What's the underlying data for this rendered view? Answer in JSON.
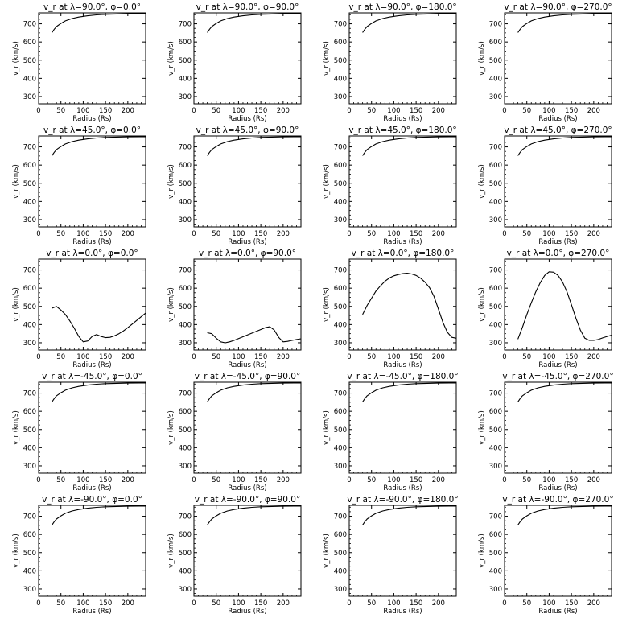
{
  "figure": {
    "xlabel": "Radius (Rs)",
    "ylabel": "v_r (km/s)",
    "xticks": [
      "0",
      "50",
      "100",
      "150",
      "200"
    ],
    "yticks": [
      "300",
      "400",
      "500",
      "600",
      "700"
    ]
  },
  "chart_data": [
    {
      "type": "line",
      "title": "v_r at λ=90.0°, φ=0.0°",
      "xlabel": "Radius (Rs)",
      "ylabel": "v_r (km/s)",
      "xlim": [
        0,
        240
      ],
      "ylim": [
        260,
        760
      ],
      "x": [
        30,
        35,
        40,
        50,
        60,
        75,
        90,
        110,
        130,
        150,
        175,
        200,
        225,
        240
      ],
      "y": [
        652,
        670,
        685,
        702,
        716,
        729,
        737,
        744,
        749,
        752,
        754,
        755,
        756,
        756
      ]
    },
    {
      "type": "line",
      "title": "v_r at λ=90.0°, φ=90.0°",
      "xlabel": "Radius (Rs)",
      "ylabel": "v_r (km/s)",
      "xlim": [
        0,
        240
      ],
      "ylim": [
        260,
        760
      ],
      "x": [
        30,
        35,
        40,
        50,
        60,
        75,
        90,
        110,
        130,
        150,
        175,
        200,
        225,
        240
      ],
      "y": [
        652,
        670,
        685,
        702,
        716,
        729,
        737,
        744,
        749,
        752,
        754,
        755,
        756,
        756
      ]
    },
    {
      "type": "line",
      "title": "v_r at λ=90.0°, φ=180.0°",
      "xlabel": "Radius (Rs)",
      "ylabel": "v_r (km/s)",
      "xlim": [
        0,
        240
      ],
      "ylim": [
        260,
        760
      ],
      "x": [
        30,
        35,
        40,
        50,
        60,
        75,
        90,
        110,
        130,
        150,
        175,
        200,
        225,
        240
      ],
      "y": [
        652,
        670,
        685,
        702,
        716,
        729,
        737,
        744,
        749,
        752,
        754,
        755,
        756,
        756
      ]
    },
    {
      "type": "line",
      "title": "v_r at λ=90.0°, φ=270.0°",
      "xlabel": "Radius (Rs)",
      "ylabel": "v_r (km/s)",
      "xlim": [
        0,
        240
      ],
      "ylim": [
        260,
        760
      ],
      "x": [
        30,
        35,
        40,
        50,
        60,
        75,
        90,
        110,
        130,
        150,
        175,
        200,
        225,
        240
      ],
      "y": [
        652,
        670,
        685,
        702,
        716,
        729,
        737,
        744,
        749,
        752,
        754,
        755,
        756,
        756
      ]
    },
    {
      "type": "line",
      "title": "v_r at λ=45.0°, φ=0.0°",
      "xlabel": "Radius (Rs)",
      "ylabel": "v_r (km/s)",
      "xlim": [
        0,
        240
      ],
      "ylim": [
        260,
        760
      ],
      "x": [
        30,
        35,
        40,
        50,
        60,
        75,
        90,
        110,
        130,
        150,
        175,
        200,
        225,
        240
      ],
      "y": [
        652,
        670,
        685,
        702,
        716,
        729,
        737,
        744,
        749,
        752,
        754,
        755,
        756,
        756
      ]
    },
    {
      "type": "line",
      "title": "v_r at λ=45.0°, φ=90.0°",
      "xlabel": "Radius (Rs)",
      "ylabel": "v_r (km/s)",
      "xlim": [
        0,
        240
      ],
      "ylim": [
        260,
        760
      ],
      "x": [
        30,
        35,
        40,
        50,
        60,
        75,
        90,
        110,
        130,
        150,
        175,
        200,
        225,
        240
      ],
      "y": [
        652,
        670,
        685,
        702,
        716,
        729,
        737,
        744,
        749,
        752,
        754,
        755,
        756,
        756
      ]
    },
    {
      "type": "line",
      "title": "v_r at λ=45.0°, φ=180.0°",
      "xlabel": "Radius (Rs)",
      "ylabel": "v_r (km/s)",
      "xlim": [
        0,
        240
      ],
      "ylim": [
        260,
        760
      ],
      "x": [
        30,
        35,
        40,
        50,
        60,
        75,
        90,
        110,
        130,
        150,
        175,
        200,
        225,
        240
      ],
      "y": [
        652,
        670,
        685,
        702,
        716,
        729,
        737,
        744,
        749,
        752,
        754,
        755,
        756,
        756
      ]
    },
    {
      "type": "line",
      "title": "v_r at λ=45.0°, φ=270.0°",
      "xlabel": "Radius (Rs)",
      "ylabel": "v_r (km/s)",
      "xlim": [
        0,
        240
      ],
      "ylim": [
        260,
        760
      ],
      "x": [
        30,
        35,
        40,
        50,
        60,
        75,
        90,
        110,
        130,
        150,
        175,
        200,
        225,
        240
      ],
      "y": [
        652,
        670,
        685,
        702,
        716,
        729,
        737,
        744,
        749,
        752,
        754,
        755,
        756,
        756
      ]
    },
    {
      "type": "line",
      "title": "v_r at λ=0.0°, φ=0.0°",
      "xlabel": "Radius (Rs)",
      "ylabel": "v_r (km/s)",
      "xlim": [
        0,
        240
      ],
      "ylim": [
        260,
        760
      ],
      "x": [
        30,
        40,
        50,
        60,
        70,
        80,
        90,
        100,
        110,
        120,
        130,
        140,
        150,
        160,
        170,
        180,
        190,
        200,
        210,
        220,
        230,
        240
      ],
      "y": [
        490,
        500,
        480,
        455,
        420,
        380,
        335,
        305,
        310,
        335,
        345,
        335,
        328,
        330,
        338,
        350,
        365,
        383,
        403,
        423,
        443,
        463
      ]
    },
    {
      "type": "line",
      "title": "v_r at λ=0.0°, φ=90.0°",
      "xlabel": "Radius (Rs)",
      "ylabel": "v_r (km/s)",
      "xlim": [
        0,
        240
      ],
      "ylim": [
        260,
        760
      ],
      "x": [
        30,
        40,
        50,
        60,
        70,
        80,
        90,
        100,
        110,
        120,
        130,
        140,
        150,
        160,
        170,
        180,
        190,
        200,
        210,
        220,
        230,
        240
      ],
      "y": [
        355,
        350,
        325,
        305,
        300,
        305,
        313,
        323,
        333,
        343,
        353,
        363,
        373,
        383,
        388,
        370,
        330,
        305,
        308,
        313,
        318,
        322
      ]
    },
    {
      "type": "line",
      "title": "v_r at λ=0.0°, φ=180.0°",
      "xlabel": "Radius (Rs)",
      "ylabel": "v_r (km/s)",
      "xlim": [
        0,
        240
      ],
      "ylim": [
        260,
        760
      ],
      "x": [
        30,
        40,
        50,
        60,
        70,
        80,
        90,
        100,
        110,
        120,
        130,
        140,
        150,
        160,
        170,
        180,
        190,
        200,
        210,
        220,
        230,
        240
      ],
      "y": [
        455,
        505,
        545,
        585,
        613,
        638,
        656,
        668,
        675,
        680,
        682,
        678,
        670,
        655,
        633,
        603,
        555,
        485,
        412,
        358,
        330,
        325
      ]
    },
    {
      "type": "line",
      "title": "v_r at λ=0.0°, φ=270.0°",
      "xlabel": "Radius (Rs)",
      "ylabel": "v_r (km/s)",
      "xlim": [
        0,
        240
      ],
      "ylim": [
        260,
        760
      ],
      "x": [
        30,
        40,
        50,
        60,
        70,
        80,
        90,
        100,
        110,
        120,
        130,
        140,
        150,
        160,
        170,
        180,
        190,
        200,
        210,
        220,
        230,
        240
      ],
      "y": [
        320,
        385,
        455,
        520,
        580,
        630,
        670,
        690,
        688,
        670,
        635,
        580,
        510,
        435,
        370,
        325,
        313,
        313,
        318,
        327,
        335,
        342
      ]
    },
    {
      "type": "line",
      "title": "v_r at λ=-45.0°, φ=0.0°",
      "xlabel": "Radius (Rs)",
      "ylabel": "v_r (km/s)",
      "xlim": [
        0,
        240
      ],
      "ylim": [
        260,
        760
      ],
      "x": [
        30,
        35,
        40,
        50,
        60,
        75,
        90,
        110,
        130,
        150,
        175,
        200,
        225,
        240
      ],
      "y": [
        652,
        670,
        685,
        702,
        716,
        729,
        737,
        744,
        749,
        752,
        754,
        755,
        756,
        756
      ]
    },
    {
      "type": "line",
      "title": "v_r at λ=-45.0°, φ=90.0°",
      "xlabel": "Radius (Rs)",
      "ylabel": "v_r (km/s)",
      "xlim": [
        0,
        240
      ],
      "ylim": [
        260,
        760
      ],
      "x": [
        30,
        35,
        40,
        50,
        60,
        75,
        90,
        110,
        130,
        150,
        175,
        200,
        225,
        240
      ],
      "y": [
        652,
        670,
        685,
        702,
        716,
        729,
        737,
        744,
        749,
        752,
        754,
        755,
        756,
        756
      ]
    },
    {
      "type": "line",
      "title": "v_r at λ=-45.0°, φ=180.0°",
      "xlabel": "Radius (Rs)",
      "ylabel": "v_r (km/s)",
      "xlim": [
        0,
        240
      ],
      "ylim": [
        260,
        760
      ],
      "x": [
        30,
        35,
        40,
        50,
        60,
        75,
        90,
        110,
        130,
        150,
        175,
        200,
        225,
        240
      ],
      "y": [
        652,
        670,
        685,
        702,
        716,
        729,
        737,
        744,
        749,
        752,
        754,
        755,
        756,
        756
      ]
    },
    {
      "type": "line",
      "title": "v_r at λ=-45.0°, φ=270.0°",
      "xlabel": "Radius (Rs)",
      "ylabel": "v_r (km/s)",
      "xlim": [
        0,
        240
      ],
      "ylim": [
        260,
        760
      ],
      "x": [
        30,
        35,
        40,
        50,
        60,
        75,
        90,
        110,
        130,
        150,
        175,
        200,
        225,
        240
      ],
      "y": [
        652,
        670,
        685,
        702,
        716,
        729,
        737,
        744,
        749,
        752,
        754,
        755,
        756,
        756
      ]
    },
    {
      "type": "line",
      "title": "v_r at λ=-90.0°, φ=0.0°",
      "xlabel": "Radius (Rs)",
      "ylabel": "v_r (km/s)",
      "xlim": [
        0,
        240
      ],
      "ylim": [
        260,
        760
      ],
      "x": [
        30,
        35,
        40,
        50,
        60,
        75,
        90,
        110,
        130,
        150,
        175,
        200,
        225,
        240
      ],
      "y": [
        652,
        670,
        685,
        702,
        716,
        729,
        737,
        744,
        749,
        752,
        754,
        755,
        756,
        756
      ]
    },
    {
      "type": "line",
      "title": "v_r at λ=-90.0°, φ=90.0°",
      "xlabel": "Radius (Rs)",
      "ylabel": "v_r (km/s)",
      "xlim": [
        0,
        240
      ],
      "ylim": [
        260,
        760
      ],
      "x": [
        30,
        35,
        40,
        50,
        60,
        75,
        90,
        110,
        130,
        150,
        175,
        200,
        225,
        240
      ],
      "y": [
        652,
        670,
        685,
        702,
        716,
        729,
        737,
        744,
        749,
        752,
        754,
        755,
        756,
        756
      ]
    },
    {
      "type": "line",
      "title": "v_r at λ=-90.0°, φ=180.0°",
      "xlabel": "Radius (Rs)",
      "ylabel": "v_r (km/s)",
      "xlim": [
        0,
        240
      ],
      "ylim": [
        260,
        760
      ],
      "x": [
        30,
        35,
        40,
        50,
        60,
        75,
        90,
        110,
        130,
        150,
        175,
        200,
        225,
        240
      ],
      "y": [
        652,
        670,
        685,
        702,
        716,
        729,
        737,
        744,
        749,
        752,
        754,
        755,
        756,
        756
      ]
    },
    {
      "type": "line",
      "title": "v_r at λ=-90.0°, φ=270.0°",
      "xlabel": "Radius (Rs)",
      "ylabel": "v_r (km/s)",
      "xlim": [
        0,
        240
      ],
      "ylim": [
        260,
        760
      ],
      "x": [
        30,
        35,
        40,
        50,
        60,
        75,
        90,
        110,
        130,
        150,
        175,
        200,
        225,
        240
      ],
      "y": [
        652,
        670,
        685,
        702,
        716,
        729,
        737,
        744,
        749,
        752,
        754,
        755,
        756,
        756
      ]
    }
  ]
}
